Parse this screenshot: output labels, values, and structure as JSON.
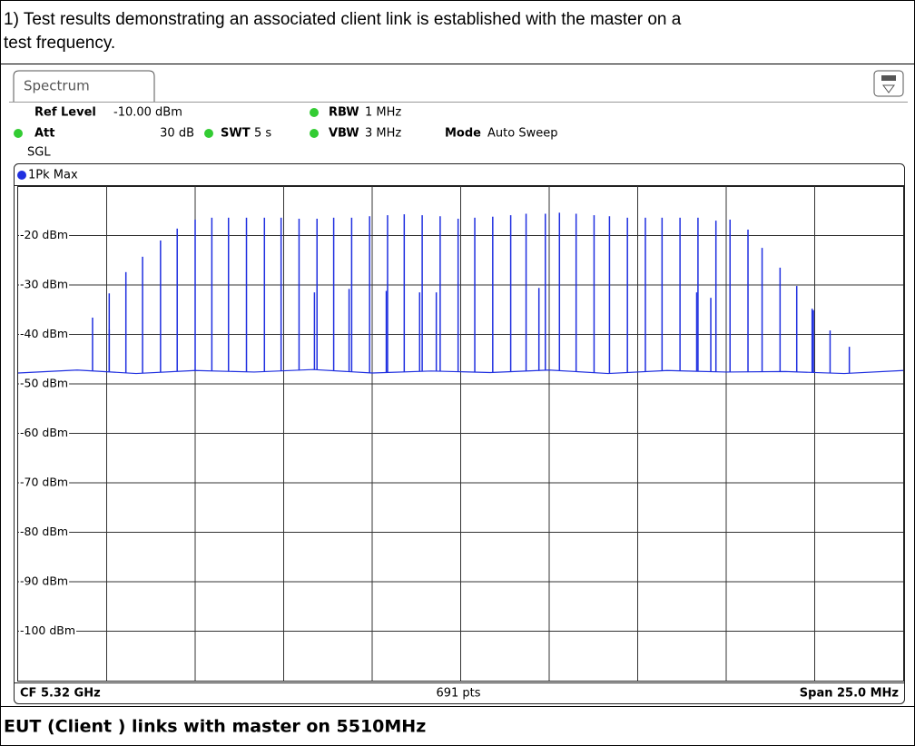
{
  "document": {
    "caption": [
      "1) Test results demonstrating an associated client link is established with the master on a",
      "test frequency."
    ],
    "footer": "EUT (Client ) links with master on 5510MHz"
  },
  "chart_data": {
    "type": "line",
    "tab": "Spectrum",
    "settings": {
      "ref_level_label": "Ref Level",
      "ref_level": "-10.00 dBm",
      "att_label": "Att",
      "att": "30 dB",
      "swt_label": "SWT",
      "swt": "5 s",
      "rbw_label": "RBW",
      "rbw": "1 MHz",
      "vbw_label": "VBW",
      "vbw": "3 MHz",
      "mode_label": "Mode",
      "mode": "Auto Sweep",
      "sweep": "SGL"
    },
    "cf": "CF 5.32 GHz",
    "points": "691 pts",
    "span": "Span 25.0 MHz",
    "xlim": [
      0,
      690
    ],
    "ylim": [
      -110,
      -10
    ],
    "yticks": [
      {
        "value": -20,
        "label": "-20 dBm"
      },
      {
        "value": -30,
        "label": "-30 dBm"
      },
      {
        "value": -40,
        "label": "-40 dBm"
      },
      {
        "value": -50,
        "label": "-50 dBm"
      },
      {
        "value": -60,
        "label": "-60 dBm"
      },
      {
        "value": -70,
        "label": "-70 dBm"
      },
      {
        "value": -80,
        "label": "-80 dBm"
      },
      {
        "value": -90,
        "label": "-90 dBm"
      },
      {
        "value": -100,
        "label": "-100 dBm"
      }
    ],
    "grid": true,
    "xgrid_divisions": 10,
    "series": [
      {
        "name": "1Pk Max",
        "color": "#1f2fe0",
        "x": [
          58,
          71,
          84,
          97,
          111,
          124,
          138,
          151,
          164,
          178,
          192,
          205,
          219,
          233,
          246,
          260,
          274,
          288,
          301,
          315,
          329,
          343,
          356,
          370,
          384,
          396,
          411,
          422,
          435,
          449,
          461,
          475,
          489,
          502,
          516,
          530,
          544,
          555,
          569,
          580,
          594,
          607,
          620,
          633,
          648,
          231,
          258,
          287,
          313,
          326,
          406,
          529,
          540,
          619,
          71
        ],
        "values": [
          -36.6,
          -31.7,
          -27.4,
          -24.3,
          -21,
          -18.6,
          -16.8,
          -16.4,
          -16.4,
          -16.4,
          -16.4,
          -16.4,
          -16.6,
          -16.6,
          -16.4,
          -16.4,
          -16.1,
          -15.9,
          -15.7,
          -15.9,
          -16.1,
          -16.6,
          -16.4,
          -16.2,
          -15.9,
          -15.6,
          -15.6,
          -15.4,
          -15.6,
          -15.9,
          -16.1,
          -16.4,
          -16.4,
          -16.4,
          -16.4,
          -16.4,
          -17,
          -16.8,
          -18.8,
          -22.5,
          -26.5,
          -30.2,
          -35.1,
          -39.2,
          -42.5,
          -31.5,
          -30.8,
          -31.2,
          -31.5,
          -31.5,
          -30.6,
          -31.5,
          -32.6,
          -34.8,
          -39
        ]
      }
    ],
    "noise_floor": {
      "x": [
        0,
        46,
        92,
        138,
        184,
        230,
        276,
        322,
        368,
        414,
        460,
        506,
        552,
        598,
        644,
        690
      ],
      "values": [
        -47.8,
        -47.2,
        -47.9,
        -47.3,
        -47.6,
        -47.1,
        -47.8,
        -47.4,
        -47.7,
        -47.2,
        -47.9,
        -47.3,
        -47.6,
        -47.5,
        -47.9,
        -47.3
      ]
    }
  }
}
